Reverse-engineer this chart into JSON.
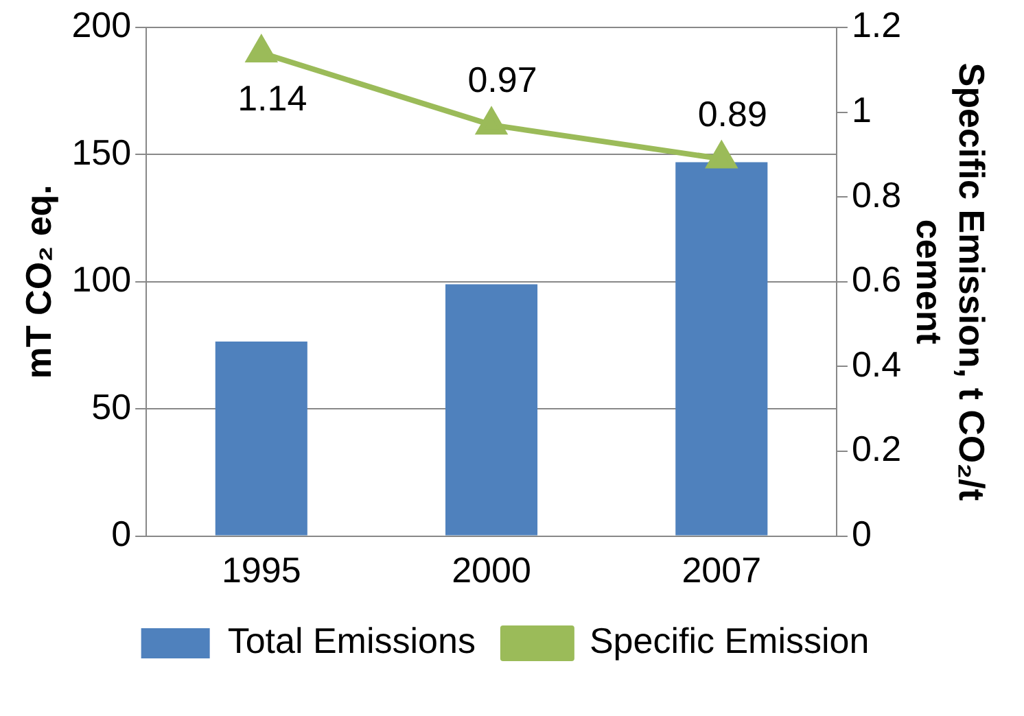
{
  "chart_data": {
    "type": "bar",
    "ylabel": "mT CO₂ eq.",
    "y2label": "Specific Emission, t CO₂/t cement",
    "categories": [
      "1995",
      "2000",
      "2007"
    ],
    "series": [
      {
        "name": "Total Emissions",
        "color": "#4f81bd",
        "values": [
          76.5,
          99,
          147
        ]
      },
      {
        "name": "Specific Emission",
        "type": "line",
        "axis": "y2",
        "color": "#9bbb59",
        "values": [
          1.14,
          0.97,
          0.89
        ],
        "value_labels": [
          "1.14",
          "0.97",
          "0.89"
        ],
        "marker": "triangle"
      }
    ],
    "ylim": [
      0,
      200
    ],
    "yticks": [
      0,
      50,
      100,
      150,
      200
    ],
    "y2lim": [
      0,
      1.2
    ],
    "y2ticks": [
      0,
      0.2,
      0.4,
      0.6,
      0.8,
      1,
      1.2
    ],
    "grid": "y",
    "legend": "bottom"
  }
}
